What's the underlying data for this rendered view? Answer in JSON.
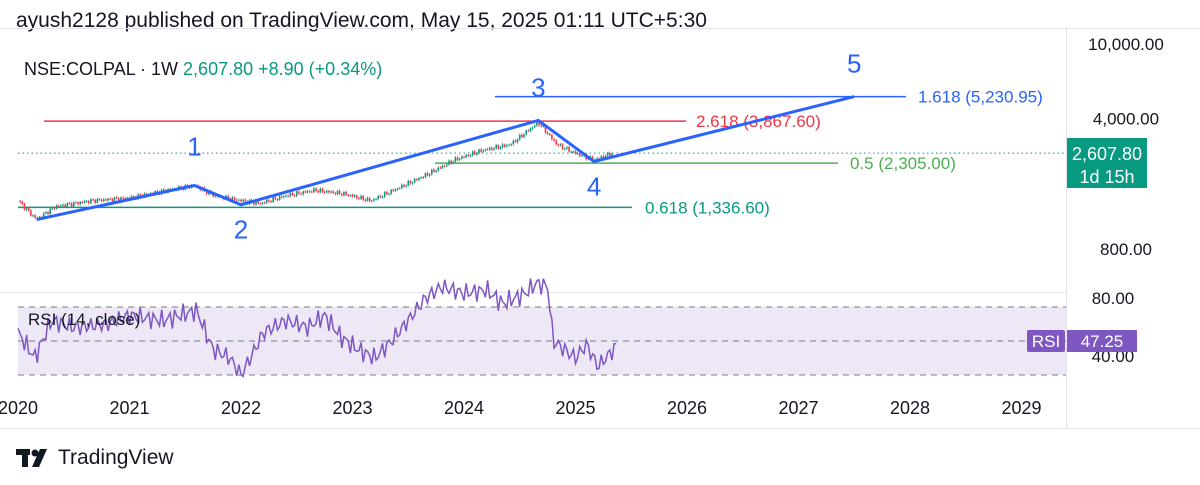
{
  "header": {
    "published": "ayush2128 published on TradingView.com, May 15, 2025 01:11 UTC+5:30"
  },
  "footer": {
    "logo": "TradingView"
  },
  "chart_data": {
    "type": "line",
    "symbol": "NSE:COLPAL · 1W",
    "last_price": "2,607.80",
    "change": "+8.90 (+0.34%)",
    "price_label": "2,607.80",
    "countdown_label": "1d 15h",
    "y_axis": {
      "scale": "log",
      "ticks": [
        "10,000.00",
        "4,000.00",
        "800.00"
      ],
      "tick_values": [
        10000,
        4000,
        800
      ]
    },
    "x_axis": {
      "ticks": [
        "2020",
        "2021",
        "2022",
        "2023",
        "2024",
        "2025",
        "2026",
        "2027",
        "2028",
        "2029"
      ]
    },
    "series": [
      {
        "values": [
          {
            "x": "2020-01",
            "y": 1450
          },
          {
            "x": "2020-03",
            "y": 1150
          },
          {
            "x": "2020-05",
            "y": 1350
          },
          {
            "x": "2020-09",
            "y": 1450
          },
          {
            "x": "2021-01",
            "y": 1500
          },
          {
            "x": "2021-05",
            "y": 1650
          },
          {
            "x": "2021-08",
            "y": 1750
          },
          {
            "x": "2021-10",
            "y": 1550
          },
          {
            "x": "2021-12",
            "y": 1480
          },
          {
            "x": "2022-03",
            "y": 1400
          },
          {
            "x": "2022-06",
            "y": 1550
          },
          {
            "x": "2022-09",
            "y": 1650
          },
          {
            "x": "2022-12",
            "y": 1580
          },
          {
            "x": "2023-03",
            "y": 1450
          },
          {
            "x": "2023-06",
            "y": 1700
          },
          {
            "x": "2023-09",
            "y": 2000
          },
          {
            "x": "2023-12",
            "y": 2400
          },
          {
            "x": "2024-03",
            "y": 2700
          },
          {
            "x": "2024-06",
            "y": 2900
          },
          {
            "x": "2024-09",
            "y": 3800
          },
          {
            "x": "2024-11",
            "y": 2900
          },
          {
            "x": "2025-01",
            "y": 2600
          },
          {
            "x": "2025-03",
            "y": 2400
          },
          {
            "x": "2025-05",
            "y": 2607.8
          }
        ]
      }
    ],
    "levels": [
      {
        "label": "2.618 (3,867.60)",
        "value": 3867.6,
        "color": "#f23645"
      },
      {
        "label": "1.618 (5,230.95)",
        "value": 5230.95,
        "color": "#2962ff"
      },
      {
        "label": "0.5 (2,305.00)",
        "value": 2305.0,
        "color": "#4caf50"
      },
      {
        "label": "0.618 (1,336.60)",
        "value": 1336.6,
        "color": "#089981"
      }
    ],
    "wave_labels": [
      "1",
      "2",
      "3",
      "4",
      "5"
    ],
    "wave_points": [
      {
        "x": "2020-03",
        "y": 1150
      },
      {
        "x": "2021-08",
        "y": 1750
      },
      {
        "x": "2022-01",
        "y": 1380
      },
      {
        "x": "2024-09",
        "y": 3900
      },
      {
        "x": "2025-03",
        "y": 2350
      },
      {
        "x": "2027-07",
        "y": 5230.95
      }
    ],
    "rsi": {
      "label": "RSI (14, close)",
      "badge_label": "RSI",
      "value_label": "47.25",
      "ticks": [
        "80.00",
        "40.00"
      ],
      "bands": [
        70,
        50,
        30
      ]
    },
    "colors": {
      "wave": "#2962ff",
      "candle_up": "#089981",
      "candle_down": "#f23645",
      "rsi_line": "#7e57c2",
      "rsi_fill": "#ede7f6",
      "price_badge": "#089981"
    }
  }
}
